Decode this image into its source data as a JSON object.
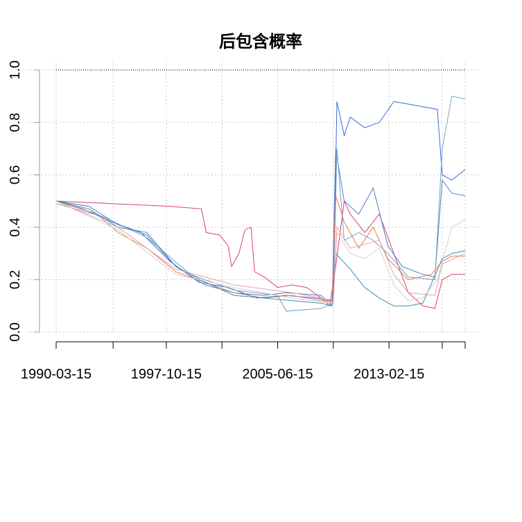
{
  "chart_data": {
    "type": "line",
    "title": "后包含概率",
    "xlabel": "",
    "ylabel": "",
    "ylim": [
      0,
      1
    ],
    "xlim": [
      "1990-03-15",
      "2018-05-15"
    ],
    "x_ticks": [
      "1990-03-15",
      "1997-10-15",
      "2005-06-15",
      "2013-02-15"
    ],
    "x_tick_positions": [
      "1990-03-15",
      "1994-02-15",
      "1997-10-15",
      "2001-08-15",
      "2005-06-15",
      "2009-04-15",
      "2013-02-15",
      "2016-10-15",
      "2018-05-15"
    ],
    "y_ticks": [
      "0.0",
      "0.2",
      "0.4",
      "0.6",
      "0.8",
      "1.0"
    ],
    "grid": true,
    "reference_line": {
      "y": 1.0,
      "style": "dotted",
      "color": "#000000"
    },
    "series": [
      {
        "color": "#d9406a",
        "points": [
          [
            "1990-03-15",
            0.5
          ],
          [
            "1994-01-15",
            0.49
          ],
          [
            "1998-01-15",
            0.48
          ],
          [
            "2000-03-15",
            0.47
          ],
          [
            "2000-07-15",
            0.38
          ],
          [
            "2001-06-15",
            0.37
          ],
          [
            "2002-01-15",
            0.33
          ],
          [
            "2002-04-15",
            0.25
          ],
          [
            "2002-10-15",
            0.3
          ],
          [
            "2003-03-15",
            0.39
          ],
          [
            "2003-08-15",
            0.4
          ],
          [
            "2003-11-15",
            0.23
          ],
          [
            "2004-07-15",
            0.21
          ],
          [
            "2005-06-15",
            0.17
          ],
          [
            "2006-06-15",
            0.18
          ],
          [
            "2007-06-15",
            0.17
          ],
          [
            "2008-06-15",
            0.13
          ],
          [
            "2009-01-15",
            0.1
          ],
          [
            "2009-06-15",
            0.25
          ],
          [
            "2010-01-15",
            0.5
          ],
          [
            "2010-06-15",
            0.45
          ],
          [
            "2011-06-15",
            0.38
          ],
          [
            "2012-06-15",
            0.45
          ],
          [
            "2013-06-15",
            0.3
          ],
          [
            "2014-06-15",
            0.15
          ],
          [
            "2015-06-15",
            0.1
          ],
          [
            "2016-04-15",
            0.09
          ],
          [
            "2016-10-15",
            0.2
          ],
          [
            "2017-06-15",
            0.22
          ],
          [
            "2018-05-15",
            0.22
          ]
        ]
      },
      {
        "color": "#3b67d4",
        "points": [
          [
            "1990-03-15",
            0.5
          ],
          [
            "1992-01-15",
            0.47
          ],
          [
            "1994-01-15",
            0.42
          ],
          [
            "1996-01-15",
            0.38
          ],
          [
            "1998-01-15",
            0.27
          ],
          [
            "2000-01-15",
            0.19
          ],
          [
            "2002-01-15",
            0.17
          ],
          [
            "2004-01-15",
            0.13
          ],
          [
            "2006-01-15",
            0.14
          ],
          [
            "2008-01-15",
            0.13
          ],
          [
            "2009-04-15",
            0.12
          ],
          [
            "2009-07-15",
            0.88
          ],
          [
            "2010-01-15",
            0.75
          ],
          [
            "2010-06-15",
            0.82
          ],
          [
            "2011-06-15",
            0.78
          ],
          [
            "2012-06-15",
            0.8
          ],
          [
            "2013-06-15",
            0.88
          ],
          [
            "2014-06-15",
            0.87
          ],
          [
            "2015-06-15",
            0.86
          ],
          [
            "2016-06-15",
            0.85
          ],
          [
            "2016-10-15",
            0.6
          ],
          [
            "2017-06-15",
            0.58
          ],
          [
            "2018-05-15",
            0.62
          ]
        ]
      },
      {
        "color": "#4a7fc9",
        "points": [
          [
            "1990-03-15",
            0.5
          ],
          [
            "1992-06-15",
            0.48
          ],
          [
            "1994-06-15",
            0.41
          ],
          [
            "1996-06-15",
            0.37
          ],
          [
            "1998-06-15",
            0.25
          ],
          [
            "2000-06-15",
            0.18
          ],
          [
            "2002-06-15",
            0.15
          ],
          [
            "2004-06-15",
            0.14
          ],
          [
            "2006-01-15",
            0.15
          ],
          [
            "2008-06-15",
            0.14
          ],
          [
            "2009-03-15",
            0.1
          ],
          [
            "2009-06-15",
            0.7
          ],
          [
            "2010-01-15",
            0.5
          ],
          [
            "2011-01-15",
            0.45
          ],
          [
            "2012-01-15",
            0.55
          ],
          [
            "2013-01-15",
            0.33
          ],
          [
            "2014-01-15",
            0.25
          ],
          [
            "2015-06-15",
            0.22
          ],
          [
            "2016-04-15",
            0.21
          ],
          [
            "2016-10-15",
            0.58
          ],
          [
            "2017-06-15",
            0.53
          ],
          [
            "2018-05-15",
            0.52
          ]
        ]
      },
      {
        "color": "#6fa6c8",
        "points": [
          [
            "1990-03-15",
            0.49
          ],
          [
            "1993-06-15",
            0.44
          ],
          [
            "1996-06-15",
            0.36
          ],
          [
            "1999-06-15",
            0.22
          ],
          [
            "2002-06-15",
            0.16
          ],
          [
            "2005-06-15",
            0.14
          ],
          [
            "2006-01-15",
            0.08
          ],
          [
            "2008-06-15",
            0.09
          ],
          [
            "2009-04-15",
            0.11
          ],
          [
            "2009-07-15",
            0.7
          ],
          [
            "2010-01-15",
            0.35
          ],
          [
            "2011-01-15",
            0.38
          ],
          [
            "2012-01-15",
            0.35
          ],
          [
            "2013-01-15",
            0.3
          ],
          [
            "2014-06-15",
            0.21
          ],
          [
            "2016-04-15",
            0.2
          ],
          [
            "2016-10-15",
            0.7
          ],
          [
            "2017-06-15",
            0.9
          ],
          [
            "2018-05-15",
            0.89
          ]
        ]
      },
      {
        "color": "#f07850",
        "points": [
          [
            "1990-03-15",
            0.5
          ],
          [
            "1993-01-15",
            0.45
          ],
          [
            "1994-06-15",
            0.38
          ],
          [
            "1996-06-15",
            0.32
          ],
          [
            "1998-06-15",
            0.23
          ],
          [
            "2000-06-15",
            0.19
          ],
          [
            "2002-06-15",
            0.15
          ],
          [
            "2004-06-15",
            0.13
          ],
          [
            "2006-06-15",
            0.14
          ],
          [
            "2008-06-15",
            0.12
          ],
          [
            "2009-03-15",
            0.12
          ],
          [
            "2009-06-15",
            0.52
          ],
          [
            "2010-01-15",
            0.42
          ],
          [
            "2011-01-15",
            0.32
          ],
          [
            "2012-01-15",
            0.4
          ],
          [
            "2013-01-15",
            0.28
          ],
          [
            "2014-06-15",
            0.2
          ],
          [
            "2016-01-15",
            0.22
          ],
          [
            "2016-10-15",
            0.27
          ],
          [
            "2017-06-15",
            0.29
          ],
          [
            "2018-05-15",
            0.29
          ]
        ]
      },
      {
        "color": "#3a8fb0",
        "points": [
          [
            "1990-03-15",
            0.5
          ],
          [
            "1992-06-15",
            0.47
          ],
          [
            "1994-06-15",
            0.4
          ],
          [
            "1996-06-15",
            0.38
          ],
          [
            "1998-06-15",
            0.25
          ],
          [
            "2000-06-15",
            0.19
          ],
          [
            "2002-06-15",
            0.14
          ],
          [
            "2004-06-15",
            0.13
          ],
          [
            "2006-06-15",
            0.12
          ],
          [
            "2008-06-15",
            0.11
          ],
          [
            "2009-03-15",
            0.1
          ],
          [
            "2009-06-15",
            0.3
          ],
          [
            "2010-06-15",
            0.24
          ],
          [
            "2011-06-15",
            0.17
          ],
          [
            "2012-06-15",
            0.13
          ],
          [
            "2013-06-15",
            0.1
          ],
          [
            "2014-06-15",
            0.1
          ],
          [
            "2015-06-15",
            0.11
          ],
          [
            "2016-10-15",
            0.28
          ],
          [
            "2017-06-15",
            0.3
          ],
          [
            "2018-05-15",
            0.31
          ]
        ]
      },
      {
        "color": "#d0d0d0",
        "points": [
          [
            "1990-03-15",
            0.5
          ],
          [
            "1994-06-15",
            0.39
          ],
          [
            "1998-06-15",
            0.22
          ],
          [
            "2002-06-15",
            0.17
          ],
          [
            "2006-06-15",
            0.13
          ],
          [
            "2009-04-15",
            0.11
          ],
          [
            "2009-07-15",
            0.38
          ],
          [
            "2010-06-15",
            0.3
          ],
          [
            "2011-06-15",
            0.28
          ],
          [
            "2012-06-15",
            0.32
          ],
          [
            "2013-06-15",
            0.18
          ],
          [
            "2014-06-15",
            0.12
          ],
          [
            "2015-06-15",
            0.13
          ],
          [
            "2016-06-15",
            0.2
          ],
          [
            "2017-06-15",
            0.4
          ],
          [
            "2018-05-15",
            0.43
          ]
        ]
      },
      {
        "color": "#e8a0a0",
        "points": [
          [
            "1990-03-15",
            0.5
          ],
          [
            "1994-06-15",
            0.4
          ],
          [
            "1998-06-15",
            0.24
          ],
          [
            "2002-06-15",
            0.18
          ],
          [
            "2006-06-15",
            0.15
          ],
          [
            "2008-06-15",
            0.13
          ],
          [
            "2009-04-15",
            0.11
          ],
          [
            "2009-07-15",
            0.4
          ],
          [
            "2010-06-15",
            0.32
          ],
          [
            "2012-06-15",
            0.35
          ],
          [
            "2013-06-15",
            0.22
          ],
          [
            "2014-06-15",
            0.15
          ],
          [
            "2016-04-15",
            0.14
          ],
          [
            "2016-10-15",
            0.26
          ],
          [
            "2018-05-15",
            0.3
          ]
        ]
      }
    ]
  }
}
